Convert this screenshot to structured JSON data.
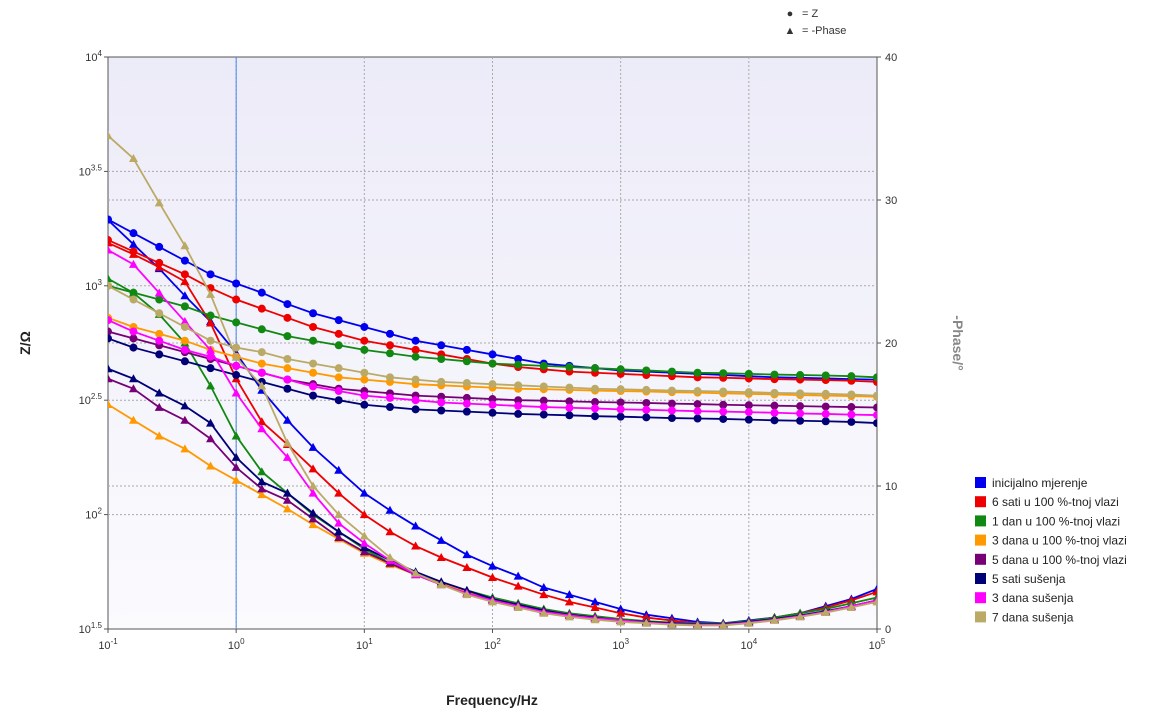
{
  "chart_data": {
    "type": "line",
    "xlabel": "Frequency/Hz",
    "ylabel_left": "Z/Ω",
    "ylabel_right": "-Phase/°",
    "x_scale": "log",
    "y_left_scale": "log",
    "xlim": [
      0.1,
      100000
    ],
    "ylim_left": [
      31.62,
      10000
    ],
    "ylim_right": [
      0,
      40
    ],
    "x_ticks": [
      {
        "base": "10",
        "exp": "-1"
      },
      {
        "base": "10",
        "exp": "0"
      },
      {
        "base": "10",
        "exp": "1"
      },
      {
        "base": "10",
        "exp": "2"
      },
      {
        "base": "10",
        "exp": "3"
      },
      {
        "base": "10",
        "exp": "4"
      },
      {
        "base": "10",
        "exp": "5"
      }
    ],
    "y_left_ticks": [
      {
        "base": "10",
        "exp": "1.5"
      },
      {
        "base": "10",
        "exp": "2"
      },
      {
        "base": "10",
        "exp": "2.5"
      },
      {
        "base": "10",
        "exp": "3"
      },
      {
        "base": "10",
        "exp": "3.5"
      },
      {
        "base": "10",
        "exp": "4"
      }
    ],
    "y_right_ticks": [
      "0",
      "10",
      "20",
      "30",
      "40"
    ],
    "marker_key": [
      {
        "symbol": "●",
        "label": "= Z"
      },
      {
        "symbol": "▲",
        "label": "= -Phase"
      }
    ],
    "legend_position": "right",
    "grid": true,
    "cursor_x": 1,
    "x": [
      0.1,
      0.158,
      0.251,
      0.398,
      0.631,
      1,
      1.585,
      2.512,
      3.981,
      6.31,
      10,
      15.85,
      25.12,
      39.81,
      63.1,
      100,
      158.5,
      251.2,
      398.1,
      631,
      1000,
      1585,
      2512,
      3981,
      6310,
      10000,
      15850,
      25120,
      39810,
      63100,
      100000
    ],
    "series": [
      {
        "name": "inicijalno mjerenje",
        "color": "#0000ee",
        "z_log": [
          3.29,
          3.23,
          3.17,
          3.11,
          3.05,
          3.01,
          2.97,
          2.92,
          2.88,
          2.85,
          2.82,
          2.79,
          2.76,
          2.74,
          2.72,
          2.7,
          2.68,
          2.66,
          2.65,
          2.64,
          2.63,
          2.625,
          2.62,
          2.615,
          2.61,
          2.605,
          2.6,
          2.598,
          2.595,
          2.592,
          2.59
        ],
        "phase": [
          28.6,
          26.9,
          25.2,
          23.3,
          21.5,
          19.3,
          16.7,
          14.6,
          12.7,
          11.1,
          9.5,
          8.3,
          7.2,
          6.2,
          5.2,
          4.4,
          3.7,
          2.9,
          2.4,
          1.9,
          1.4,
          1.0,
          0.75,
          0.5,
          0.4,
          0.6,
          0.8,
          1.1,
          1.6,
          2.1,
          2.8
        ]
      },
      {
        "name": "6 sati u 100 %-tnoj vlazi",
        "color": "#ee0000",
        "z_log": [
          3.2,
          3.15,
          3.1,
          3.05,
          2.99,
          2.94,
          2.9,
          2.86,
          2.82,
          2.79,
          2.76,
          2.74,
          2.72,
          2.7,
          2.68,
          2.66,
          2.645,
          2.635,
          2.625,
          2.62,
          2.615,
          2.61,
          2.605,
          2.6,
          2.598,
          2.595,
          2.592,
          2.59,
          2.588,
          2.585,
          2.58
        ],
        "phase": [
          27.0,
          26.2,
          25.3,
          24.3,
          21.4,
          17.5,
          14.5,
          12.9,
          11.2,
          9.5,
          8.0,
          6.8,
          5.8,
          5.0,
          4.3,
          3.6,
          3.0,
          2.4,
          1.9,
          1.5,
          1.1,
          0.8,
          0.6,
          0.4,
          0.35,
          0.55,
          0.8,
          1.1,
          1.5,
          2.0,
          2.6
        ]
      },
      {
        "name": "1 dan u 100 %-tnoj vlazi",
        "color": "#118811",
        "z_log": [
          3.0,
          2.97,
          2.94,
          2.91,
          2.87,
          2.84,
          2.81,
          2.78,
          2.76,
          2.74,
          2.72,
          2.705,
          2.69,
          2.68,
          2.67,
          2.66,
          2.655,
          2.65,
          2.645,
          2.64,
          2.635,
          2.63,
          2.625,
          2.62,
          2.618,
          2.615,
          2.612,
          2.61,
          2.608,
          2.605,
          2.6
        ],
        "phase": [
          24.5,
          23.5,
          22.0,
          20.0,
          17.0,
          13.5,
          11.0,
          9.5,
          8.0,
          6.8,
          5.6,
          4.6,
          3.8,
          3.2,
          2.7,
          2.2,
          1.8,
          1.4,
          1.1,
          0.9,
          0.7,
          0.55,
          0.45,
          0.4,
          0.4,
          0.55,
          0.8,
          1.1,
          1.4,
          1.8,
          2.2
        ]
      },
      {
        "name": "3 dana u 100 %-tnoj vlazi",
        "color": "#ff9900",
        "z_log": [
          2.86,
          2.82,
          2.79,
          2.76,
          2.72,
          2.69,
          2.66,
          2.64,
          2.62,
          2.6,
          2.59,
          2.58,
          2.57,
          2.565,
          2.56,
          2.555,
          2.55,
          2.548,
          2.545,
          2.542,
          2.54,
          2.538,
          2.535,
          2.533,
          2.53,
          2.528,
          2.525,
          2.522,
          2.52,
          2.518,
          2.515
        ],
        "phase": [
          15.7,
          14.6,
          13.5,
          12.6,
          11.4,
          10.4,
          9.4,
          8.4,
          7.3,
          6.3,
          5.3,
          4.5,
          3.8,
          3.2,
          2.6,
          2.1,
          1.7,
          1.3,
          1.0,
          0.8,
          0.6,
          0.45,
          0.35,
          0.3,
          0.3,
          0.45,
          0.65,
          0.9,
          1.2,
          1.6,
          2.0
        ]
      },
      {
        "name": "5 dana u 100 %-tnoj vlazi",
        "color": "#770077",
        "z_log": [
          2.8,
          2.77,
          2.74,
          2.71,
          2.68,
          2.65,
          2.62,
          2.59,
          2.57,
          2.55,
          2.54,
          2.53,
          2.52,
          2.515,
          2.51,
          2.505,
          2.5,
          2.498,
          2.495,
          2.492,
          2.49,
          2.488,
          2.485,
          2.483,
          2.48,
          2.478,
          2.476,
          2.474,
          2.472,
          2.47,
          2.468
        ],
        "phase": [
          17.5,
          16.8,
          15.5,
          14.6,
          13.3,
          11.3,
          9.8,
          9.0,
          7.7,
          6.4,
          5.4,
          4.6,
          3.8,
          3.1,
          2.5,
          2.0,
          1.6,
          1.2,
          0.95,
          0.75,
          0.6,
          0.45,
          0.35,
          0.3,
          0.3,
          0.45,
          0.65,
          0.9,
          1.2,
          1.6,
          2.0
        ]
      },
      {
        "name": "5 sati sušenja",
        "color": "#000077",
        "z_log": [
          2.77,
          2.73,
          2.7,
          2.67,
          2.64,
          2.61,
          2.58,
          2.55,
          2.52,
          2.5,
          2.48,
          2.47,
          2.46,
          2.455,
          2.45,
          2.445,
          2.44,
          2.437,
          2.434,
          2.43,
          2.428,
          2.425,
          2.422,
          2.42,
          2.418,
          2.415,
          2.412,
          2.41,
          2.408,
          2.405,
          2.4
        ],
        "phase": [
          18.2,
          17.5,
          16.5,
          15.6,
          14.4,
          12.0,
          10.3,
          9.5,
          8.1,
          6.8,
          5.7,
          4.8,
          4.0,
          3.3,
          2.7,
          2.1,
          1.7,
          1.3,
          1.0,
          0.8,
          0.6,
          0.5,
          0.4,
          0.35,
          0.35,
          0.5,
          0.7,
          0.95,
          1.25,
          1.6,
          2.0
        ]
      },
      {
        "name": "3 dana sušenja",
        "color": "#ff00ff",
        "z_log": [
          2.85,
          2.8,
          2.76,
          2.72,
          2.69,
          2.65,
          2.62,
          2.59,
          2.56,
          2.54,
          2.52,
          2.51,
          2.5,
          2.49,
          2.485,
          2.48,
          2.475,
          2.47,
          2.467,
          2.464,
          2.46,
          2.458,
          2.455,
          2.452,
          2.45,
          2.448,
          2.445,
          2.442,
          2.44,
          2.437,
          2.435
        ],
        "phase": [
          26.5,
          25.5,
          23.5,
          21.5,
          19.5,
          16.5,
          14.0,
          12.0,
          9.5,
          7.4,
          6.0,
          4.8,
          3.8,
          3.1,
          2.5,
          2.0,
          1.6,
          1.2,
          0.95,
          0.75,
          0.6,
          0.45,
          0.35,
          0.3,
          0.3,
          0.45,
          0.65,
          0.9,
          1.2,
          1.6,
          2.0
        ]
      },
      {
        "name": "7 dana sušenja",
        "color": "#bbaa66",
        "z_log": [
          3.0,
          2.94,
          2.88,
          2.82,
          2.76,
          2.73,
          2.71,
          2.68,
          2.66,
          2.64,
          2.62,
          2.6,
          2.59,
          2.58,
          2.575,
          2.57,
          2.565,
          2.56,
          2.555,
          2.55,
          2.548,
          2.545,
          2.542,
          2.54,
          2.538,
          2.535,
          2.532,
          2.53,
          2.528,
          2.525,
          2.52
        ],
        "phase": [
          34.5,
          32.9,
          29.8,
          26.8,
          23.4,
          19.0,
          17.0,
          13.0,
          10.0,
          8.0,
          6.5,
          5.0,
          3.9,
          3.1,
          2.4,
          1.9,
          1.5,
          1.1,
          0.85,
          0.65,
          0.5,
          0.4,
          0.3,
          0.25,
          0.25,
          0.4,
          0.6,
          0.85,
          1.15,
          1.5,
          1.9
        ]
      }
    ]
  }
}
